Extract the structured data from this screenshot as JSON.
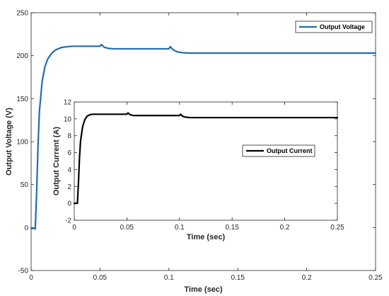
{
  "chart_data": [
    {
      "type": "line",
      "title": "",
      "xlabel": "Time (sec)",
      "ylabel": "Output Voltage (V)",
      "xlim": [
        0,
        0.25
      ],
      "ylim": [
        -50,
        250
      ],
      "xticks": [
        0,
        0.05,
        0.1,
        0.15,
        0.2,
        0.25
      ],
      "xtick_labels": [
        "0",
        "0.05",
        "0.1",
        "0.15",
        "0.2",
        "0.25"
      ],
      "yticks": [
        -50,
        0,
        50,
        100,
        150,
        200,
        250
      ],
      "ytick_labels": [
        "-50",
        "0",
        "50",
        "100",
        "150",
        "200",
        "250"
      ],
      "grid": false,
      "legend": "top-right",
      "series": [
        {
          "name": "Output Voltage",
          "color": "#1f6db0",
          "x": [
            0,
            0.002,
            0.003,
            0.004,
            0.005,
            0.006,
            0.008,
            0.01,
            0.012,
            0.015,
            0.018,
            0.022,
            0.026,
            0.03,
            0.035,
            0.04,
            0.045,
            0.05,
            0.051,
            0.053,
            0.056,
            0.06,
            0.065,
            0.07,
            0.08,
            0.09,
            0.1,
            0.101,
            0.103,
            0.106,
            0.11,
            0.115,
            0.12,
            0.13,
            0.15,
            0.2,
            0.25
          ],
          "y": [
            -1,
            -1,
            -1.5,
            40,
            95,
            135,
            170,
            187,
            196,
            203,
            207,
            209.5,
            210.5,
            211,
            211,
            211,
            211,
            211,
            213,
            210,
            208.5,
            208,
            208,
            208,
            208,
            208,
            208,
            210.5,
            207,
            204.5,
            203.5,
            203,
            203,
            203,
            203,
            203,
            203
          ]
        }
      ]
    },
    {
      "type": "line",
      "title": "",
      "xlabel": "Time (sec)",
      "ylabel": "Output Current (A)",
      "xlim": [
        0,
        0.25
      ],
      "ylim": [
        -2,
        12
      ],
      "xticks": [
        0,
        0.05,
        0.1,
        0.15,
        0.2,
        0.25
      ],
      "xtick_labels": [
        "0",
        "0.05",
        "0.1",
        "0.15",
        "0.2",
        "0.25"
      ],
      "yticks": [
        -2,
        0,
        2,
        4,
        6,
        8,
        10,
        12
      ],
      "ytick_labels": [
        "-2",
        "0",
        "2",
        "4",
        "6",
        "8",
        "10",
        "12"
      ],
      "grid": false,
      "legend": "center-right",
      "series": [
        {
          "name": "Output Current",
          "color": "#000000",
          "x": [
            0,
            0.002,
            0.003,
            0.004,
            0.005,
            0.006,
            0.008,
            0.01,
            0.012,
            0.015,
            0.018,
            0.022,
            0.026,
            0.03,
            0.035,
            0.04,
            0.045,
            0.05,
            0.051,
            0.053,
            0.056,
            0.06,
            0.07,
            0.08,
            0.09,
            0.1,
            0.101,
            0.103,
            0.106,
            0.11,
            0.115,
            0.12,
            0.13,
            0.15,
            0.2,
            0.25
          ],
          "y": [
            0,
            0,
            0,
            2.5,
            5.5,
            7.4,
            9.1,
            9.9,
            10.3,
            10.5,
            10.55,
            10.55,
            10.55,
            10.55,
            10.55,
            10.55,
            10.55,
            10.55,
            10.7,
            10.5,
            10.4,
            10.4,
            10.4,
            10.4,
            10.4,
            10.4,
            10.55,
            10.3,
            10.2,
            10.15,
            10.15,
            10.15,
            10.15,
            10.15,
            10.15,
            10.15
          ]
        }
      ]
    }
  ]
}
